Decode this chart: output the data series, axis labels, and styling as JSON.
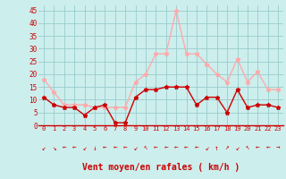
{
  "x": [
    0,
    1,
    2,
    3,
    4,
    5,
    6,
    7,
    8,
    9,
    10,
    11,
    12,
    13,
    14,
    15,
    16,
    17,
    18,
    19,
    20,
    21,
    22,
    23
  ],
  "wind_mean": [
    11,
    8,
    7,
    7,
    4,
    7,
    8,
    1,
    1,
    11,
    14,
    14,
    15,
    15,
    15,
    8,
    11,
    11,
    5,
    14,
    7,
    8,
    8,
    7
  ],
  "wind_gust": [
    18,
    13,
    8,
    8,
    8,
    7,
    7,
    7,
    7,
    17,
    20,
    28,
    28,
    45,
    28,
    28,
    24,
    20,
    17,
    26,
    17,
    21,
    14,
    14
  ],
  "mean_color": "#cc0000",
  "gust_color": "#ffaaaa",
  "bg_color": "#cceeed",
  "grid_color": "#99cccc",
  "xlabel": "Vent moyen/en rafales ( km/h )",
  "xlabel_color": "#cc0000",
  "ylabel_ticks": [
    0,
    5,
    10,
    15,
    20,
    25,
    30,
    35,
    40,
    45
  ],
  "ylim": [
    0,
    47
  ],
  "xlim": [
    -0.5,
    23.5
  ],
  "tick_color": "#cc0000",
  "marker": "*",
  "markersize": 3.5,
  "linewidth": 1.0,
  "arrow_chars": [
    "↙",
    "↘",
    "←",
    "←",
    "↙",
    "↓",
    "←",
    "←",
    "←",
    "↙",
    "↖",
    "←",
    "←",
    "←",
    "←",
    "←",
    "↙",
    "↑",
    "↗",
    "↙",
    "↖",
    "←",
    "←",
    "→"
  ]
}
